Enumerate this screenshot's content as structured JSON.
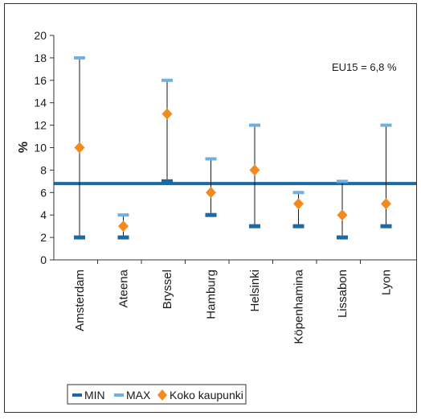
{
  "chart_data": {
    "type": "scatter",
    "categories": [
      "Amsterdam",
      "Ateena",
      "Bryssel",
      "Hamburg",
      "Helsinki",
      "Köpenhamina",
      "Lissabon",
      "Lyon"
    ],
    "series": [
      {
        "name": "MIN",
        "values": [
          2,
          2,
          7,
          4,
          3,
          3,
          2,
          3
        ]
      },
      {
        "name": "MAX",
        "values": [
          18,
          4,
          16,
          9,
          12,
          6,
          7,
          12
        ]
      },
      {
        "name": "Koko kaupunki",
        "values": [
          10,
          3,
          13,
          6,
          8,
          5,
          4,
          5
        ]
      }
    ],
    "ylabel": "%",
    "ylim": [
      0,
      20
    ],
    "yticks": [
      "0",
      "2",
      "4",
      "6",
      "8",
      "10",
      "12",
      "14",
      "16",
      "18",
      "20"
    ],
    "reference_line": {
      "value": 6.8,
      "label": "EU15 = 6,8 %",
      "color": "#1a6aa6"
    },
    "colors": {
      "min": "#1a6aa6",
      "max": "#6fb0e0",
      "point": "#f28a1e",
      "range_line": "#1a1a1a"
    },
    "grid": false,
    "legend_position": "bottom-left"
  }
}
